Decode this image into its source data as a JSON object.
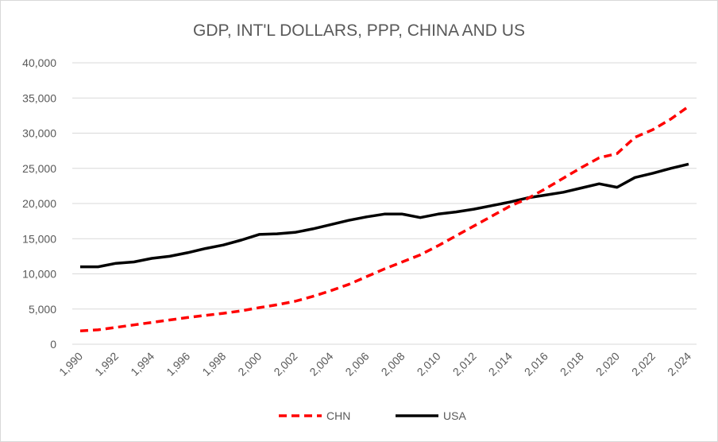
{
  "chart_data": {
    "type": "line",
    "title": "GDP, INT'L DOLLARS, PPP, CHINA AND US",
    "xlabel": "",
    "ylabel": "",
    "ylim": [
      0,
      40000
    ],
    "xlim": [
      1990,
      2024
    ],
    "y_ticks": [
      0,
      5000,
      10000,
      15000,
      20000,
      25000,
      30000,
      35000,
      40000
    ],
    "y_tick_labels": [
      "0",
      "5,000",
      "10,000",
      "15,000",
      "20,000",
      "25,000",
      "30,000",
      "35,000",
      "40,000"
    ],
    "x_ticks": [
      1990,
      1992,
      1994,
      1996,
      1998,
      2000,
      2002,
      2004,
      2006,
      2008,
      2010,
      2012,
      2014,
      2016,
      2018,
      2020,
      2022,
      2024
    ],
    "x_tick_labels": [
      "1,990",
      "1,992",
      "1,994",
      "1,996",
      "1,998",
      "2,000",
      "2,002",
      "2,004",
      "2,006",
      "2,008",
      "2,010",
      "2,012",
      "2,014",
      "2,016",
      "2,018",
      "2,020",
      "2,022",
      "2,024"
    ],
    "grid": true,
    "legend_position": "bottom",
    "x": [
      1990,
      1991,
      1992,
      1993,
      1994,
      1995,
      1996,
      1997,
      1998,
      1999,
      2000,
      2001,
      2002,
      2003,
      2004,
      2005,
      2006,
      2007,
      2008,
      2009,
      2010,
      2011,
      2012,
      2013,
      2014,
      2015,
      2016,
      2017,
      2018,
      2019,
      2020,
      2021,
      2022,
      2023,
      2024
    ],
    "series": [
      {
        "name": "CHN",
        "color": "#ff0000",
        "style": "dashed",
        "values": [
          1900,
          2050,
          2400,
          2750,
          3100,
          3450,
          3800,
          4100,
          4400,
          4750,
          5200,
          5600,
          6100,
          6800,
          7600,
          8500,
          9600,
          10700,
          11700,
          12700,
          14000,
          15400,
          16800,
          18200,
          19600,
          20700,
          22100,
          23600,
          25100,
          26500,
          27100,
          29400,
          30500,
          32000,
          33800
        ]
      },
      {
        "name": "USA",
        "color": "#000000",
        "style": "solid",
        "values": [
          11000,
          11000,
          11500,
          11700,
          12200,
          12500,
          13000,
          13600,
          14100,
          14800,
          15600,
          15700,
          15900,
          16400,
          17000,
          17600,
          18100,
          18500,
          18500,
          18000,
          18500,
          18800,
          19200,
          19700,
          20200,
          20800,
          21200,
          21600,
          22200,
          22800,
          22300,
          23700,
          24300,
          25000,
          25600
        ]
      }
    ]
  }
}
